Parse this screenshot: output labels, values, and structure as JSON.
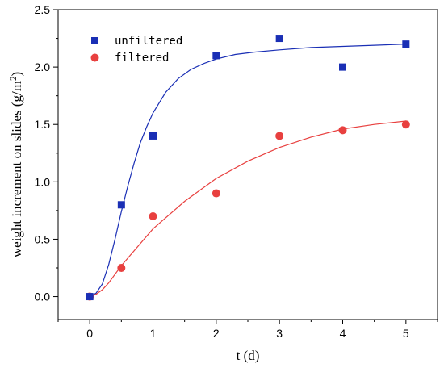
{
  "chart_data": {
    "type": "scatter",
    "xlabel": "t (d)",
    "ylabel_main": "weight increment on slides (g/m",
    "ylabel_sup": "2",
    "ylabel_close": ")",
    "xlim": [
      -0.5,
      5.5
    ],
    "ylim": [
      -0.2,
      2.5
    ],
    "xticks": [
      0,
      1,
      2,
      3,
      4,
      5
    ],
    "yticks": [
      0.0,
      0.5,
      1.0,
      1.5,
      2.0,
      2.5
    ],
    "xtick_labels": [
      "0",
      "1",
      "2",
      "3",
      "4",
      "5"
    ],
    "ytick_labels": [
      "0.0",
      "0.5",
      "1.0",
      "1.5",
      "2.0",
      "2.5"
    ],
    "legend_position": "top-left",
    "grid": false,
    "series": [
      {
        "name": "unfiltered",
        "marker": "square",
        "color": "#1a2fb5",
        "x": [
          0,
          0.5,
          1,
          2,
          3,
          4,
          5
        ],
        "y": [
          0,
          0.8,
          1.4,
          2.1,
          2.25,
          2.0,
          2.2
        ],
        "fit_curve": {
          "x": [
            0,
            0.1,
            0.2,
            0.3,
            0.4,
            0.5,
            0.6,
            0.7,
            0.8,
            0.9,
            1.0,
            1.2,
            1.4,
            1.6,
            1.8,
            2.0,
            2.3,
            2.6,
            3.0,
            3.5,
            4.0,
            4.5,
            5.0
          ],
          "y": [
            0.0,
            0.03,
            0.11,
            0.28,
            0.5,
            0.74,
            0.96,
            1.16,
            1.34,
            1.48,
            1.6,
            1.78,
            1.9,
            1.98,
            2.03,
            2.07,
            2.11,
            2.13,
            2.15,
            2.17,
            2.18,
            2.19,
            2.2
          ]
        }
      },
      {
        "name": "filtered",
        "marker": "circle",
        "color": "#e8403f",
        "x": [
          0,
          0.5,
          1,
          2,
          3,
          4,
          5
        ],
        "y": [
          0,
          0.25,
          0.7,
          0.9,
          1.4,
          1.45,
          1.5
        ],
        "fit_curve": {
          "x": [
            0,
            0.1,
            0.2,
            0.3,
            0.5,
            0.75,
            1.0,
            1.5,
            2.0,
            2.5,
            3.0,
            3.5,
            4.0,
            4.5,
            5.0
          ],
          "y": [
            0.0,
            0.02,
            0.06,
            0.12,
            0.27,
            0.43,
            0.59,
            0.83,
            1.03,
            1.18,
            1.3,
            1.39,
            1.46,
            1.5,
            1.53
          ]
        }
      }
    ]
  }
}
